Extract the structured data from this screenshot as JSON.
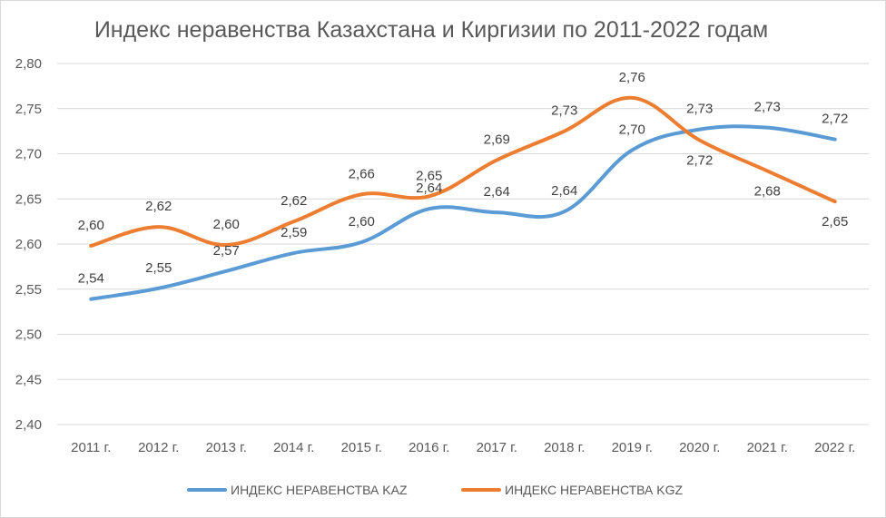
{
  "chart_data": {
    "type": "line",
    "title": "Индекс неравенства Казахстана и Киргизии по 2011-2022 годам",
    "categories": [
      "2011 г.",
      "2012 г.",
      "2013 г.",
      "2014 г.",
      "2015 г.",
      "2016 г.",
      "2017 г.",
      "2018 г.",
      "2019 г.",
      "2020 г.",
      "2021 г.",
      "2022 г."
    ],
    "ylim": [
      2.4,
      2.8
    ],
    "yticks": [
      "2,40",
      "2,45",
      "2,50",
      "2,55",
      "2,60",
      "2,65",
      "2,70",
      "2,75",
      "2,80"
    ],
    "grid": true,
    "legend_position": "bottom",
    "series": [
      {
        "name": "ИНДЕКС НЕРАВЕНСТВА KAZ",
        "color": "#5b9bd5",
        "values": [
          2.539,
          2.551,
          2.57,
          2.59,
          2.602,
          2.639,
          2.635,
          2.636,
          2.704,
          2.727,
          2.729,
          2.716
        ],
        "labels": [
          "2,54",
          "2,55",
          "2,57",
          "2,59",
          "2,60",
          "2,64",
          "2,64",
          "2,64",
          "2,70",
          "2,73",
          "2,73",
          "2,72"
        ]
      },
      {
        "name": "ИНДЕКС  НЕРАВЕНСТВА KGZ",
        "color": "#ed7d31",
        "values": [
          2.598,
          2.619,
          2.599,
          2.625,
          2.655,
          2.653,
          2.693,
          2.725,
          2.762,
          2.715,
          2.681,
          2.647
        ],
        "labels": [
          "2,60",
          "2,62",
          "2,60",
          "2,62",
          "2,66",
          "2,65",
          "2,69",
          "2,73",
          "2,76",
          "2,72",
          "2,68",
          "2,65"
        ]
      }
    ]
  }
}
